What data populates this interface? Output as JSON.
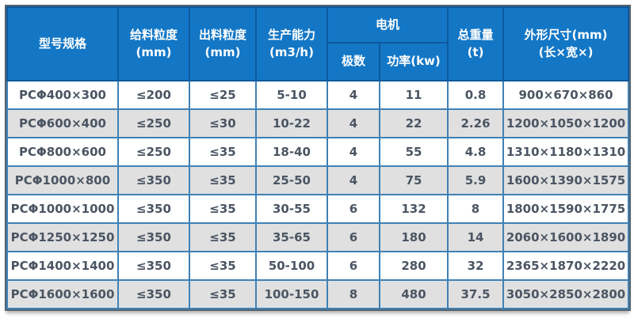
{
  "colors": {
    "header-bg": "#1377c6",
    "header-border": "#0d5a9e",
    "cell-border": "#3f81b5",
    "row-alt": "#e0e0e0",
    "text": "#4b5563",
    "frame-border": "#54646f"
  },
  "table": {
    "headers": {
      "model": "型号规格",
      "feed_size": "给料粒度\n(mm)",
      "discharge_size": "出料粒度\n(mm)",
      "capacity": "生产能力\n(m3/h)",
      "motor": "电机",
      "poles": "极数",
      "power": "功率(kw)",
      "weight": "总重量\n(t)",
      "dimensions": "外形尺寸(mm)\n(长×宽×)"
    },
    "column_keys": [
      "model",
      "feed_size",
      "discharge_size",
      "capacity",
      "poles",
      "power",
      "weight",
      "dimensions"
    ],
    "rows": [
      [
        "PCΦ400×300",
        "≤200",
        "≤25",
        "5-10",
        "4",
        "11",
        "0.8",
        "900×670×860"
      ],
      [
        "PCΦ600×400",
        "≤250",
        "≤30",
        "10-22",
        "4",
        "22",
        "2.26",
        "1200×1050×1200"
      ],
      [
        "PCΦ800×600",
        "≤250",
        "≤35",
        "18-40",
        "4",
        "55",
        "4.8",
        "1310×1180×1310"
      ],
      [
        "PCΦ1000×800",
        "≤350",
        "≤35",
        "25-50",
        "4",
        "75",
        "5.9",
        "1600×1390×1575"
      ],
      [
        "PCΦ1000×1000",
        "≤350",
        "≤35",
        "30-55",
        "6",
        "132",
        "8",
        "1800×1590×1775"
      ],
      [
        "PCΦ1250×1250",
        "≤350",
        "≤35",
        "35-65",
        "6",
        "180",
        "14",
        "2060×1600×1890"
      ],
      [
        "PCΦ1400×1400",
        "≤350",
        "≤35",
        "50-100",
        "6",
        "280",
        "32",
        "2365×1870×2220"
      ],
      [
        "PCΦ1600×1600",
        "≤350",
        "≤35",
        "100-150",
        "8",
        "480",
        "37.5",
        "3050×2850×2800"
      ]
    ]
  }
}
